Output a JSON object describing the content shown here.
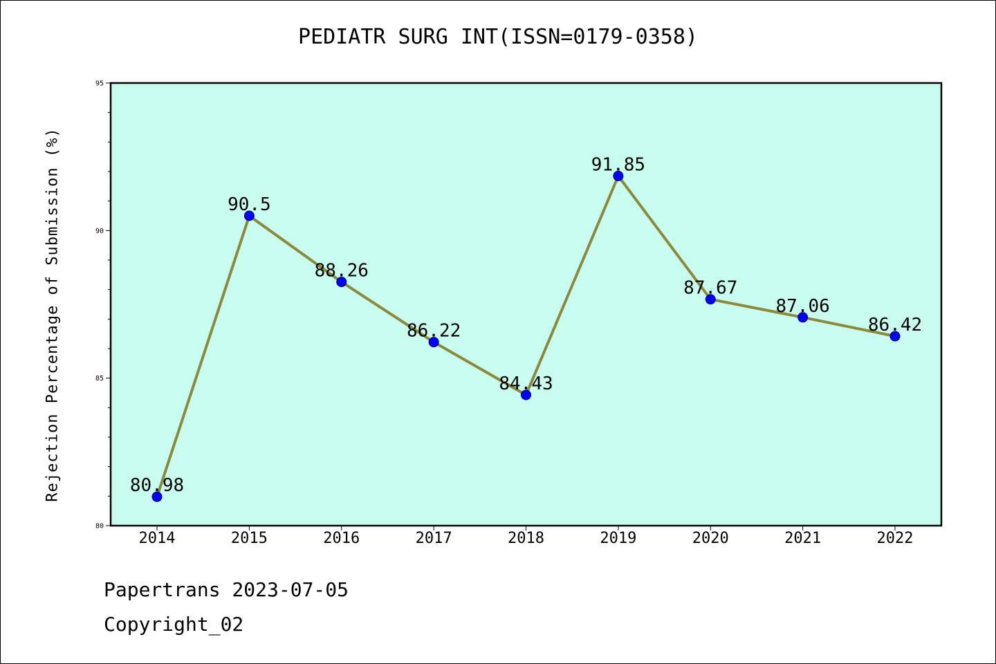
{
  "chart_data": {
    "type": "line",
    "title": "PEDIATR SURG INT(ISSN=0179-0358)",
    "xlabel": "",
    "ylabel": "Rejection Percentage of Submission (%)",
    "categories": [
      "2014",
      "2015",
      "2016",
      "2017",
      "2018",
      "2019",
      "2020",
      "2021",
      "2022"
    ],
    "values": [
      80.98,
      90.5,
      88.26,
      86.22,
      84.43,
      91.85,
      87.67,
      87.06,
      86.42
    ],
    "data_labels": [
      "80.98",
      "90.5",
      "88.26",
      "86.22",
      "84.43",
      "91.85",
      "87.67",
      "87.06",
      "86.42"
    ],
    "ylim": [
      80,
      95
    ],
    "yticks": [
      "80",
      "85",
      "90",
      "95"
    ],
    "grid": false,
    "colors": {
      "plot_background": "#c8fcee",
      "line": "#8b8a3c",
      "marker": "#0000ff"
    }
  },
  "footer": {
    "date_text": "Papertrans 2023-07-05",
    "copyright_text": "Copyright_02"
  }
}
